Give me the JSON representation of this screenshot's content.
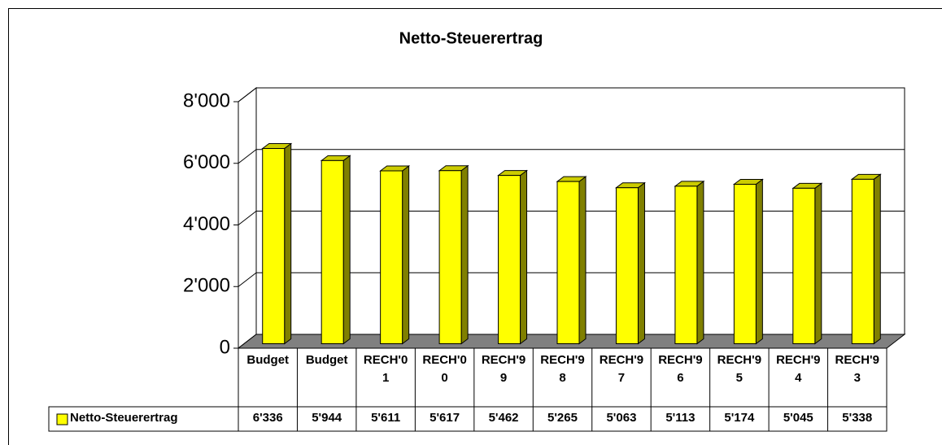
{
  "chart_data": {
    "type": "bar3d",
    "title": "Netto-Steuerertrag",
    "categories": [
      "Budget",
      "Budget",
      "RECH'01",
      "RECH'00",
      "RECH'99",
      "RECH'98",
      "RECH'97",
      "RECH'96",
      "RECH'95",
      "RECH'94",
      "RECH'93"
    ],
    "series": [
      {
        "name": "Netto-Steuerertrag",
        "color": "#ffff00",
        "values": [
          6336,
          5944,
          5611,
          5617,
          5462,
          5265,
          5063,
          5113,
          5174,
          5045,
          5338
        ],
        "value_labels": [
          "6'336",
          "5'944",
          "5'611",
          "5'617",
          "5'462",
          "5'265",
          "5'063",
          "5'113",
          "5'174",
          "5'045",
          "5'338"
        ]
      }
    ],
    "ylim": [
      0,
      8000
    ],
    "yticks": [
      0,
      {
        "value": 2000,
        "label": "2'000"
      },
      {
        "value": 4000,
        "label": "4'000"
      },
      {
        "value": 6000,
        "label": "6'000"
      },
      {
        "value": 8000,
        "label": "8'000"
      }
    ],
    "grid": true,
    "data_table": true
  }
}
